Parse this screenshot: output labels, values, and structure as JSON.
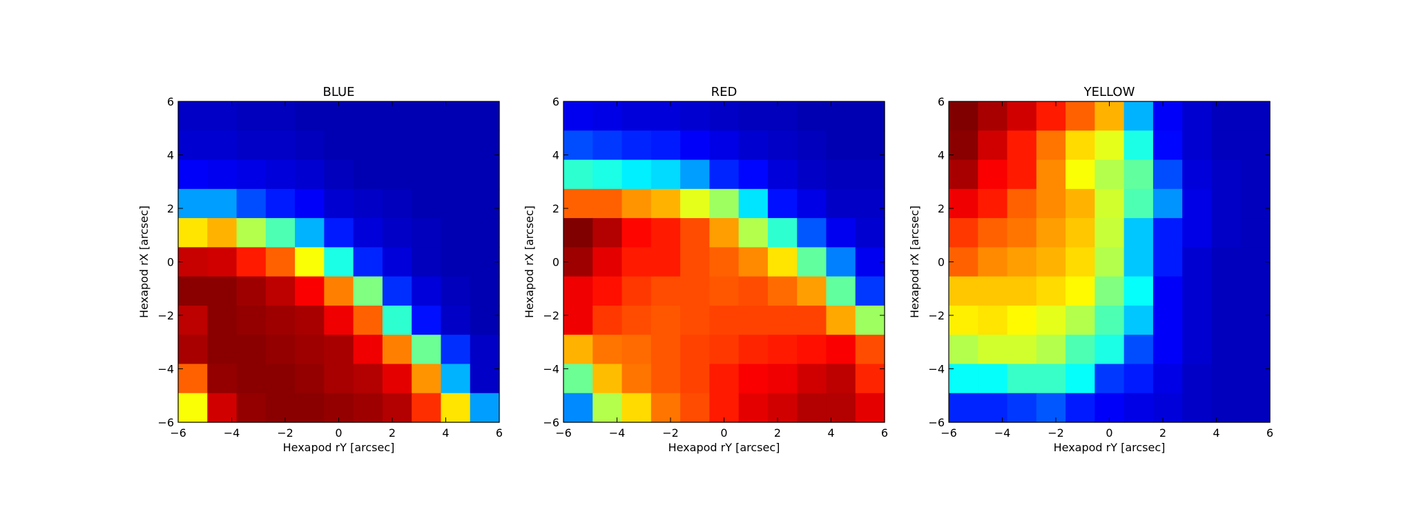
{
  "chart_data": [
    {
      "type": "heatmap",
      "title": "BLUE",
      "xlabel": "Hexapod rY [arcsec]",
      "ylabel": "Hexapod rX [arcsec]",
      "xlim": [
        -6,
        6
      ],
      "ylim": [
        -6,
        6
      ],
      "xticks": [
        -6,
        -4,
        -2,
        0,
        2,
        4,
        6
      ],
      "yticks": [
        -6,
        -4,
        -2,
        0,
        2,
        4,
        6
      ],
      "tick_labels": [
        "−6",
        "−4",
        "−2",
        "0",
        "2",
        "4",
        "6"
      ],
      "colormap": "jet",
      "value_range": [
        0,
        1
      ],
      "grid": false,
      "rows_top_to_bottom": [
        [
          0.07,
          0.07,
          0.06,
          0.06,
          0.05,
          0.05,
          0.05,
          0.05,
          0.05,
          0.05,
          0.05
        ],
        [
          0.08,
          0.08,
          0.07,
          0.07,
          0.06,
          0.05,
          0.05,
          0.05,
          0.05,
          0.05,
          0.05
        ],
        [
          0.12,
          0.11,
          0.1,
          0.09,
          0.08,
          0.06,
          0.05,
          0.05,
          0.05,
          0.05,
          0.05
        ],
        [
          0.28,
          0.28,
          0.2,
          0.15,
          0.12,
          0.08,
          0.07,
          0.06,
          0.05,
          0.05,
          0.05
        ],
        [
          0.65,
          0.7,
          0.55,
          0.45,
          0.3,
          0.15,
          0.09,
          0.07,
          0.06,
          0.05,
          0.05
        ],
        [
          0.93,
          0.92,
          0.85,
          0.78,
          0.62,
          0.4,
          0.16,
          0.09,
          0.06,
          0.05,
          0.05
        ],
        [
          0.99,
          0.99,
          0.97,
          0.94,
          0.88,
          0.75,
          0.5,
          0.17,
          0.09,
          0.06,
          0.05
        ],
        [
          0.94,
          0.99,
          0.98,
          0.97,
          0.96,
          0.89,
          0.78,
          0.42,
          0.14,
          0.07,
          0.05
        ],
        [
          0.96,
          0.99,
          0.99,
          0.98,
          0.97,
          0.96,
          0.89,
          0.75,
          0.48,
          0.17,
          0.07
        ],
        [
          0.78,
          0.98,
          0.99,
          0.99,
          0.98,
          0.96,
          0.95,
          0.9,
          0.73,
          0.3,
          0.07
        ],
        [
          0.62,
          0.92,
          0.98,
          0.99,
          0.99,
          0.98,
          0.97,
          0.95,
          0.83,
          0.65,
          0.28
        ]
      ]
    },
    {
      "type": "heatmap",
      "title": "RED",
      "xlabel": "Hexapod rY [arcsec]",
      "ylabel": "Hexapod rX [arcsec]",
      "xlim": [
        -6,
        6
      ],
      "ylim": [
        -6,
        6
      ],
      "xticks": [
        -6,
        -4,
        -2,
        0,
        2,
        4,
        6
      ],
      "yticks": [
        -6,
        -4,
        -2,
        0,
        2,
        4,
        6
      ],
      "tick_labels": [
        "−6",
        "−4",
        "−2",
        "0",
        "2",
        "4",
        "6"
      ],
      "colormap": "jet",
      "value_range": [
        0,
        1
      ],
      "grid": false,
      "rows_top_to_bottom": [
        [
          0.11,
          0.1,
          0.09,
          0.09,
          0.08,
          0.07,
          0.06,
          0.06,
          0.05,
          0.05,
          0.05
        ],
        [
          0.2,
          0.18,
          0.16,
          0.15,
          0.12,
          0.1,
          0.08,
          0.07,
          0.06,
          0.05,
          0.05
        ],
        [
          0.42,
          0.4,
          0.36,
          0.34,
          0.28,
          0.16,
          0.13,
          0.09,
          0.07,
          0.06,
          0.06
        ],
        [
          0.78,
          0.78,
          0.73,
          0.7,
          0.6,
          0.53,
          0.35,
          0.14,
          0.1,
          0.07,
          0.07
        ],
        [
          1.0,
          0.95,
          0.87,
          0.85,
          0.8,
          0.72,
          0.55,
          0.42,
          0.21,
          0.11,
          0.08
        ],
        [
          0.97,
          0.9,
          0.85,
          0.85,
          0.8,
          0.78,
          0.74,
          0.65,
          0.47,
          0.25,
          0.11
        ],
        [
          0.89,
          0.86,
          0.82,
          0.8,
          0.8,
          0.79,
          0.8,
          0.77,
          0.72,
          0.47,
          0.18
        ],
        [
          0.89,
          0.82,
          0.8,
          0.79,
          0.8,
          0.81,
          0.81,
          0.81,
          0.81,
          0.71,
          0.53
        ],
        [
          0.7,
          0.76,
          0.77,
          0.79,
          0.81,
          0.82,
          0.84,
          0.85,
          0.86,
          0.88,
          0.8
        ],
        [
          0.48,
          0.69,
          0.76,
          0.79,
          0.81,
          0.85,
          0.88,
          0.89,
          0.92,
          0.94,
          0.84
        ],
        [
          0.26,
          0.55,
          0.66,
          0.76,
          0.8,
          0.85,
          0.9,
          0.92,
          0.95,
          0.95,
          0.9
        ]
      ]
    },
    {
      "type": "heatmap",
      "title": "YELLOW",
      "xlabel": "Hexapod rY [arcsec]",
      "ylabel": "Hexapod rX [arcsec]",
      "xlim": [
        -6,
        6
      ],
      "ylim": [
        -6,
        6
      ],
      "xticks": [
        -6,
        -4,
        -2,
        0,
        2,
        4,
        6
      ],
      "yticks": [
        -6,
        -4,
        -2,
        0,
        2,
        4,
        6
      ],
      "tick_labels": [
        "−6",
        "−4",
        "−2",
        "0",
        "2",
        "4",
        "6"
      ],
      "colormap": "jet",
      "value_range": [
        0,
        1
      ],
      "grid": false,
      "rows_top_to_bottom": [
        [
          1.0,
          0.96,
          0.92,
          0.85,
          0.78,
          0.7,
          0.3,
          0.12,
          0.08,
          0.06,
          0.06
        ],
        [
          0.99,
          0.92,
          0.85,
          0.76,
          0.66,
          0.6,
          0.4,
          0.13,
          0.08,
          0.06,
          0.06
        ],
        [
          0.96,
          0.88,
          0.85,
          0.74,
          0.62,
          0.55,
          0.47,
          0.2,
          0.09,
          0.07,
          0.06
        ],
        [
          0.89,
          0.85,
          0.78,
          0.74,
          0.7,
          0.58,
          0.45,
          0.27,
          0.1,
          0.07,
          0.06
        ],
        [
          0.82,
          0.78,
          0.76,
          0.72,
          0.68,
          0.57,
          0.32,
          0.15,
          0.1,
          0.07,
          0.06
        ],
        [
          0.78,
          0.74,
          0.72,
          0.7,
          0.66,
          0.55,
          0.32,
          0.15,
          0.08,
          0.06,
          0.06
        ],
        [
          0.68,
          0.68,
          0.68,
          0.66,
          0.63,
          0.5,
          0.38,
          0.12,
          0.08,
          0.06,
          0.06
        ],
        [
          0.64,
          0.65,
          0.63,
          0.6,
          0.55,
          0.45,
          0.32,
          0.12,
          0.08,
          0.06,
          0.06
        ],
        [
          0.55,
          0.58,
          0.58,
          0.55,
          0.45,
          0.4,
          0.2,
          0.12,
          0.08,
          0.06,
          0.06
        ],
        [
          0.38,
          0.38,
          0.43,
          0.43,
          0.38,
          0.18,
          0.15,
          0.1,
          0.07,
          0.06,
          0.06
        ],
        [
          0.16,
          0.16,
          0.18,
          0.21,
          0.15,
          0.12,
          0.1,
          0.09,
          0.07,
          0.06,
          0.06
        ]
      ]
    }
  ]
}
